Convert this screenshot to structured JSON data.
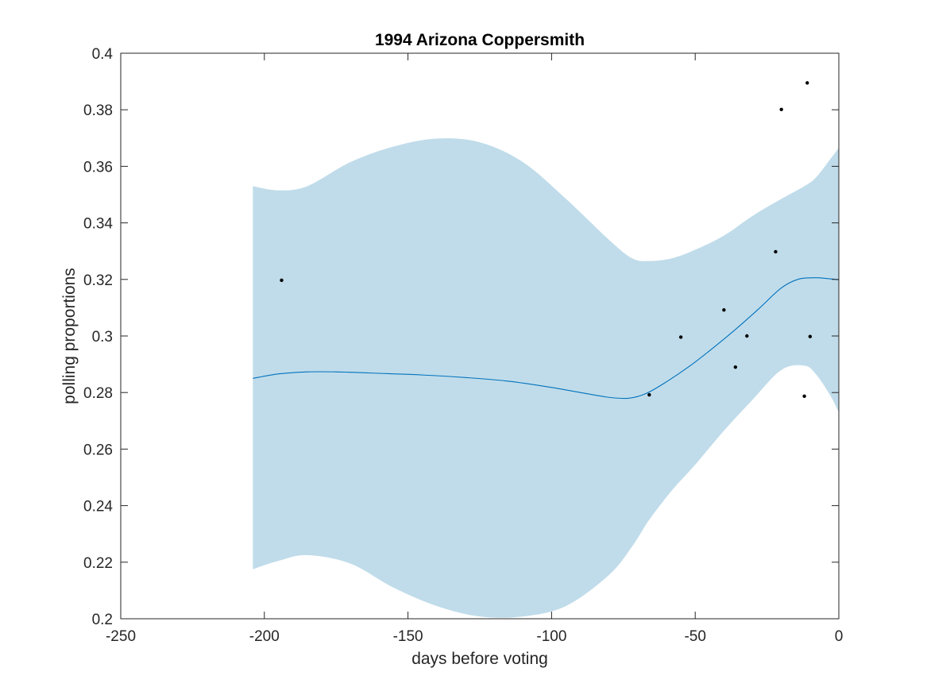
{
  "chart_data": {
    "type": "line",
    "title": "1994 Arizona Coppersmith",
    "xlabel": "days before voting",
    "ylabel": "polling proportions",
    "xlim": [
      -250,
      0
    ],
    "ylim": [
      0.2,
      0.4
    ],
    "xticks": [
      -250,
      -200,
      -150,
      -100,
      -50,
      0
    ],
    "xtick_labels": [
      "-250",
      "-200",
      "-150",
      "-100",
      "-50",
      "0"
    ],
    "yticks": [
      0.2,
      0.22,
      0.24,
      0.26,
      0.28,
      0.3,
      0.32,
      0.34,
      0.36,
      0.38,
      0.4
    ],
    "ytick_labels": [
      "0.2",
      "0.22",
      "0.24",
      "0.26",
      "0.28",
      "0.3",
      "0.32",
      "0.34",
      "0.36",
      "0.38",
      "0.4"
    ],
    "grid": false,
    "series": [
      {
        "kind": "band",
        "color": "#c0dcea",
        "x": [
          -204,
          -195,
          -185,
          -170,
          -155,
          -140,
          -125,
          -110,
          -95,
          -80,
          -72,
          -66,
          -58,
          -50,
          -40,
          -30,
          -20,
          -12,
          -8,
          -3,
          0
        ],
        "upper": [
          0.353,
          0.3515,
          0.353,
          0.3615,
          0.367,
          0.3698,
          0.3685,
          0.3615,
          0.3485,
          0.334,
          0.3275,
          0.3265,
          0.3275,
          0.3305,
          0.3355,
          0.3425,
          0.3485,
          0.353,
          0.356,
          0.3625,
          0.3665
        ],
        "lower": [
          0.2175,
          0.2205,
          0.2225,
          0.2195,
          0.211,
          0.2045,
          0.2008,
          0.2008,
          0.2045,
          0.2155,
          0.2255,
          0.235,
          0.2455,
          0.2545,
          0.2665,
          0.2775,
          0.288,
          0.2895,
          0.2865,
          0.279,
          0.273
        ]
      },
      {
        "kind": "line",
        "color": "#0072bd",
        "x": [
          -204,
          -195,
          -185,
          -175,
          -160,
          -145,
          -130,
          -115,
          -100,
          -90,
          -80,
          -73,
          -67,
          -60,
          -52,
          -44,
          -36,
          -28,
          -20,
          -14,
          -8,
          -4,
          0
        ],
        "y": [
          0.285,
          0.2866,
          0.2873,
          0.2873,
          0.2868,
          0.2862,
          0.2853,
          0.284,
          0.2818,
          0.28,
          0.2783,
          0.278,
          0.2797,
          0.2838,
          0.2893,
          0.2956,
          0.3023,
          0.3095,
          0.317,
          0.3201,
          0.3206,
          0.3203,
          0.3199
        ]
      },
      {
        "kind": "scatter",
        "color": "#000000",
        "x": [
          -194,
          -66,
          -55,
          -40,
          -36,
          -32,
          -22,
          -20,
          -12,
          -11,
          -10
        ],
        "y": [
          0.3197,
          0.2792,
          0.2996,
          0.3092,
          0.289,
          0.3,
          0.3298,
          0.3801,
          0.2787,
          0.3895,
          0.2998
        ]
      }
    ]
  }
}
